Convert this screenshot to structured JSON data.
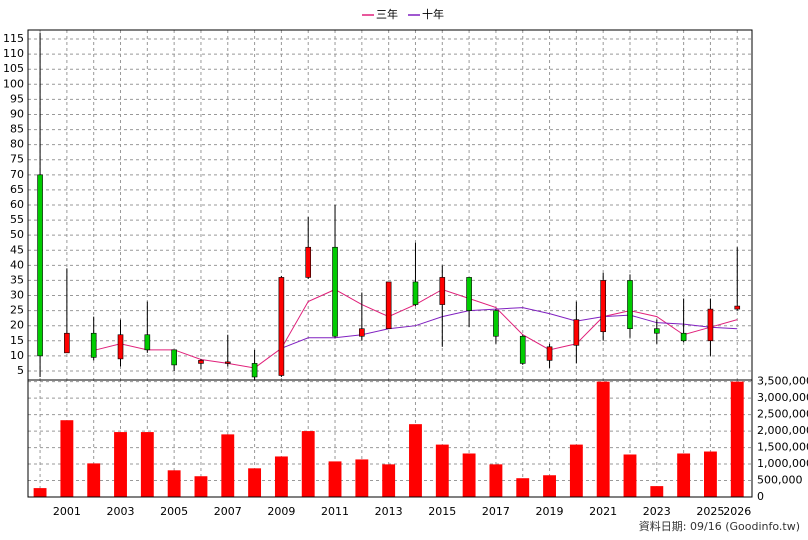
{
  "chart_data": {
    "type": "candlestick",
    "categories": [
      null,
      "2001",
      null,
      "2003",
      null,
      "2005",
      null,
      "2007",
      null,
      "2009",
      null,
      "2011",
      null,
      "2013",
      null,
      "2015",
      null,
      "2017",
      null,
      "2019",
      null,
      "2021",
      null,
      "2023",
      null,
      "2025",
      "2026"
    ],
    "open": [
      70,
      11,
      17.5,
      9,
      17,
      12,
      7.5,
      7.5,
      7.5,
      3.5,
      36,
      46,
      16.5,
      19,
      34.5,
      27,
      36,
      25,
      16.5,
      8.5,
      13.5,
      18,
      35,
      19,
      17.5,
      15,
      25.5
    ],
    "high": [
      117,
      39,
      23,
      22,
      28,
      12,
      9,
      17,
      12,
      36.5,
      56,
      60,
      31,
      34.5,
      47.5,
      40,
      36,
      25.5,
      17,
      14,
      28,
      37.5,
      37,
      22,
      29,
      29,
      46
    ],
    "low": [
      3,
      11,
      8.5,
      6.5,
      11,
      5,
      5.5,
      6.5,
      2,
      3,
      35.5,
      16,
      15,
      19,
      26.5,
      13,
      19.5,
      14,
      7,
      6,
      7.5,
      15,
      16,
      14,
      14.5,
      10,
      25
    ],
    "close": [
      10,
      17.5,
      9.5,
      17,
      12,
      7,
      8.5,
      8,
      3,
      36,
      46,
      16.5,
      19,
      34.5,
      27,
      36,
      25,
      16.5,
      7.5,
      13,
      22,
      35,
      19,
      17.5,
      15,
      25.5,
      26.5
    ],
    "up_color": "#ff0000",
    "down_color": "#00cc00",
    "series": [
      {
        "name": "三年",
        "color": "#e0207a",
        "values": [
          null,
          null,
          11.8,
          14,
          12,
          12,
          8.8,
          7.5,
          6,
          12.5,
          28,
          32,
          27,
          23,
          27,
          32,
          29,
          26,
          17,
          12,
          14,
          23,
          25,
          23,
          17,
          19.5,
          22
        ]
      },
      {
        "name": "十年",
        "color": "#8020c0",
        "values": [
          null,
          null,
          null,
          null,
          null,
          null,
          null,
          null,
          null,
          12.5,
          16,
          16,
          17,
          19,
          20,
          23,
          25,
          25.5,
          26,
          24,
          21.5,
          23,
          23.5,
          21,
          20.5,
          19.5,
          19
        ]
      }
    ],
    "ylim": [
      2,
      118
    ],
    "yticks": [
      5,
      10,
      15,
      20,
      25,
      30,
      35,
      40,
      45,
      50,
      55,
      60,
      65,
      70,
      75,
      80,
      85,
      90,
      95,
      100,
      105,
      110,
      115
    ],
    "volume": {
      "color": "#ff0000",
      "values": [
        270000,
        2330000,
        1020000,
        1970000,
        1970000,
        810000,
        630000,
        1900000,
        870000,
        1230000,
        2000000,
        1080000,
        1140000,
        990000,
        2210000,
        1590000,
        1320000,
        990000,
        570000,
        660000,
        1590000,
        3500000,
        1290000,
        330000,
        1320000,
        1380000,
        3500000
      ]
    },
    "y2lim": [
      0,
      3550000
    ],
    "y2ticks": [
      {
        "value": 0,
        "label": "0"
      },
      {
        "value": 500000,
        "label": "500,000"
      },
      {
        "value": 1000000,
        "label": "1,000,000"
      },
      {
        "value": 1500000,
        "label": "1,500,000"
      },
      {
        "value": 2000000,
        "label": "2,000,000"
      },
      {
        "value": 2500000,
        "label": "2,500,000"
      },
      {
        "value": 3000000,
        "label": "3,000,000"
      },
      {
        "value": 3500000,
        "label": "3,500,000"
      }
    ],
    "grid": true,
    "footer": "資料日期: 09/16  (Goodinfo.tw)"
  }
}
